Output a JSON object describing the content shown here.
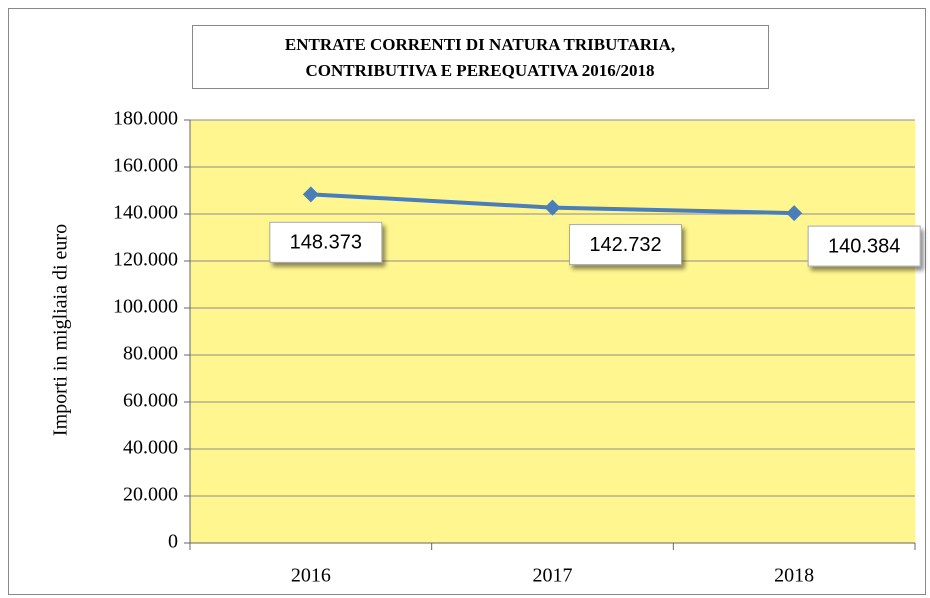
{
  "chart_data": {
    "type": "line",
    "title": [
      "ENTRATE CORRENTI DI NATURA TRIBUTARIA,",
      "CONTRIBUTIVA E PEREQUATIVA 2016/2018"
    ],
    "y_label": "Importi in migliaia di euro",
    "categories": [
      "2016",
      "2017",
      "2018"
    ],
    "series": [
      {
        "name": null,
        "color": "#4a7ebb",
        "values": [
          148373,
          142732,
          140384
        ],
        "value_labels": [
          "148.373",
          "142.732",
          "140.384"
        ]
      }
    ],
    "ylim": [
      0,
      180000
    ],
    "yticks": [
      0,
      {
        "value": 20000,
        "label": "20.000"
      },
      {
        "value": 40000,
        "label": "40.000"
      },
      {
        "value": 60000,
        "label": "60.000"
      },
      {
        "value": 80000,
        "label": "80.000"
      },
      {
        "value": 100000,
        "label": "100.000"
      },
      {
        "value": 120000,
        "label": "120.000"
      },
      {
        "value": 140000,
        "label": "140.000"
      },
      {
        "value": 160000,
        "label": "160.000"
      },
      {
        "value": 180000,
        "label": "180.000"
      }
    ],
    "grid": true,
    "plot_background": "#fff68f"
  }
}
